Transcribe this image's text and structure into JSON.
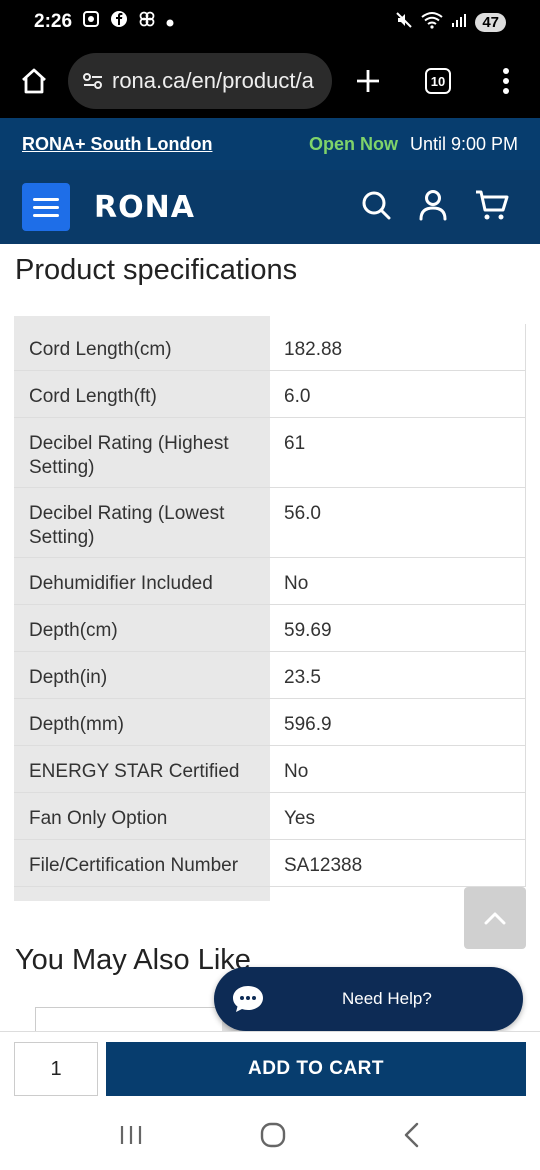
{
  "status_bar": {
    "time": "2:26",
    "battery": "47"
  },
  "browser": {
    "url": "rona.ca/en/product/a",
    "tab_count": "10"
  },
  "store_bar": {
    "store_name": "RONA+ South London",
    "open_status": "Open Now",
    "hours": "Until 9:00 PM"
  },
  "header": {
    "logo": "RONA"
  },
  "specs": {
    "title": "Product specifications",
    "rows": [
      {
        "name": "Cord Length(cm)",
        "value": "182.88"
      },
      {
        "name": "Cord Length(ft)",
        "value": "6.0"
      },
      {
        "name": "Decibel Rating (Highest Setting)",
        "value": "61"
      },
      {
        "name": "Decibel Rating (Lowest Setting)",
        "value": "56.0"
      },
      {
        "name": "Dehumidifier Included",
        "value": "No"
      },
      {
        "name": "Depth(cm)",
        "value": "59.69"
      },
      {
        "name": "Depth(in)",
        "value": "23.5"
      },
      {
        "name": "Depth(mm)",
        "value": "596.9"
      },
      {
        "name": "ENERGY STAR Certified",
        "value": "No"
      },
      {
        "name": "Fan Only Option",
        "value": "Yes"
      },
      {
        "name": "File/Certification Number",
        "value": "SA12388"
      }
    ]
  },
  "also_like": {
    "title": "You May Also Like"
  },
  "help": {
    "label": "Need Help?"
  },
  "cart": {
    "quantity": "1",
    "add_label": "ADD TO CART"
  },
  "colors": {
    "brand_dark": "#073d6e",
    "accent_blue": "#1e6ee8",
    "open_green": "#7fd36a"
  }
}
